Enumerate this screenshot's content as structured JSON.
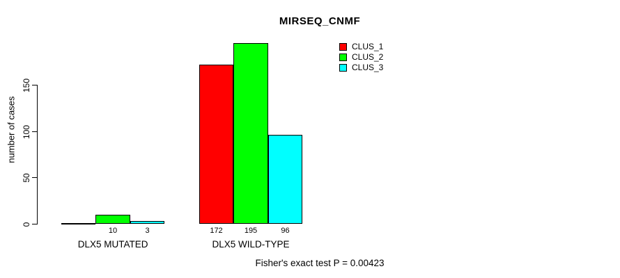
{
  "chart_data": {
    "type": "bar",
    "title": "MIRSEQ_CNMF",
    "xlabel": "",
    "ylabel": "number of cases",
    "categories": [
      "DLX5 MUTATED",
      "DLX5 WILD-TYPE"
    ],
    "series": [
      {
        "name": "CLUS_1",
        "color": "#ff0000",
        "values": [
          0,
          172
        ]
      },
      {
        "name": "CLUS_2",
        "color": "#00ff00",
        "values": [
          10,
          195
        ]
      },
      {
        "name": "CLUS_3",
        "color": "#00ffff",
        "values": [
          3,
          96
        ]
      }
    ],
    "bar_value_labels": [
      [
        "",
        "10",
        "3"
      ],
      [
        "172",
        "195",
        "96"
      ]
    ],
    "y_ticks": [
      0,
      50,
      100,
      150
    ],
    "axis_range": [
      0,
      150
    ],
    "grid": false,
    "legend_position": "top-right-inside",
    "annotation": "Fisher's exact test P = 0.00423"
  }
}
